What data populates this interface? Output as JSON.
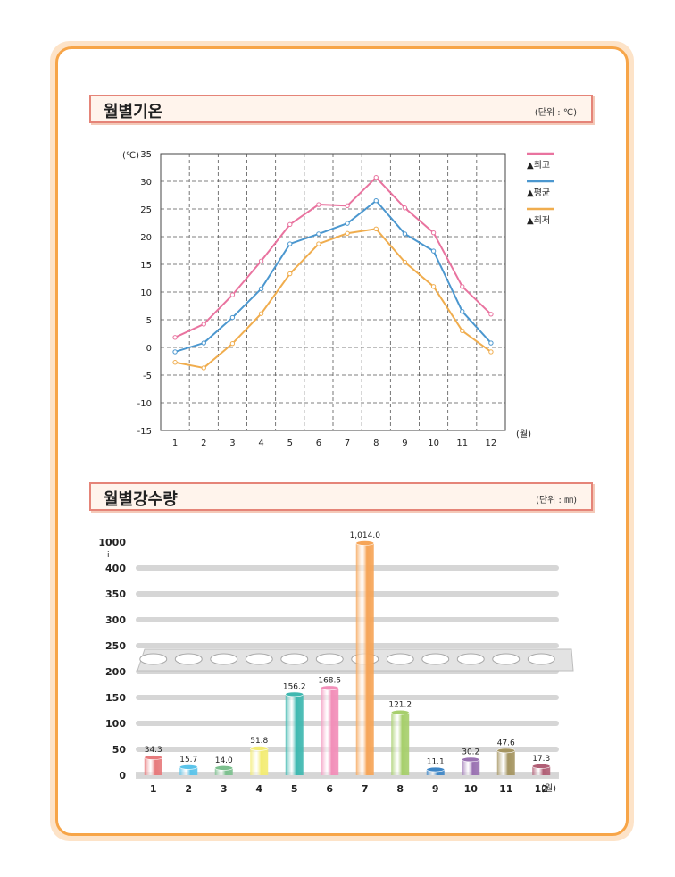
{
  "colors": {
    "frame": "#f7a548",
    "title_border": "#e58478",
    "high": "#e9739f",
    "avg": "#4b97cf",
    "low": "#f0ad4e"
  },
  "temp_section": {
    "title": "월별기온",
    "unit": "(단위 : ℃)",
    "y_unit": "(℃)",
    "x_unit": "(월)"
  },
  "rain_section": {
    "title": "월별강수량",
    "unit": "(단위 : ㎜)",
    "x_unit": "(월)",
    "y_break_marker": "i"
  },
  "chart_data": [
    {
      "type": "line",
      "x": [
        1,
        2,
        3,
        4,
        5,
        6,
        7,
        8,
        9,
        10,
        11,
        12
      ],
      "ylim": [
        -15,
        35
      ],
      "yticks": [
        35,
        30,
        25,
        20,
        15,
        10,
        5,
        0,
        -5,
        -10,
        -15
      ],
      "grid": true,
      "legend_position": "right",
      "series": [
        {
          "name": "▲최고",
          "values": [
            1.8,
            4.2,
            9.5,
            15.6,
            22.2,
            25.8,
            25.6,
            30.7,
            25.2,
            20.7,
            11.0,
            6.0
          ]
        },
        {
          "name": "▲평균",
          "values": [
            -0.8,
            0.8,
            5.4,
            10.6,
            18.7,
            20.5,
            22.4,
            26.5,
            20.5,
            17.4,
            6.5,
            0.8
          ]
        },
        {
          "name": "▲최저",
          "values": [
            -2.7,
            -3.7,
            0.7,
            6.1,
            13.3,
            18.7,
            20.6,
            21.4,
            15.4,
            11.0,
            3.0,
            -0.8
          ]
        }
      ]
    },
    {
      "type": "bar",
      "categories": [
        "1",
        "2",
        "3",
        "4",
        "5",
        "6",
        "7",
        "8",
        "9",
        "10",
        "11",
        "12"
      ],
      "values": [
        34.3,
        15.7,
        14.0,
        51.8,
        156.2,
        168.5,
        1014.0,
        121.2,
        11.1,
        30.2,
        47.6,
        17.3
      ],
      "value_labels": [
        "34.3",
        "15.7",
        "14.0",
        "51.8",
        "156.2",
        "168.5",
        "1,014.0",
        "121.2",
        "11.1",
        "30.2",
        "47.6",
        "17.3"
      ],
      "yticks": [
        "1000",
        "400",
        "350",
        "300",
        "250",
        "200",
        "150",
        "100",
        "50",
        "0"
      ],
      "axis_break": true,
      "bar_colors": [
        "#e77a7c",
        "#5bc4ea",
        "#7cc08e",
        "#f3ec74",
        "#3fb8b0",
        "#f28fb9",
        "#f6a558",
        "#a7cf6c",
        "#3e86c6",
        "#9a72b2",
        "#a59561",
        "#b15f76"
      ]
    }
  ]
}
